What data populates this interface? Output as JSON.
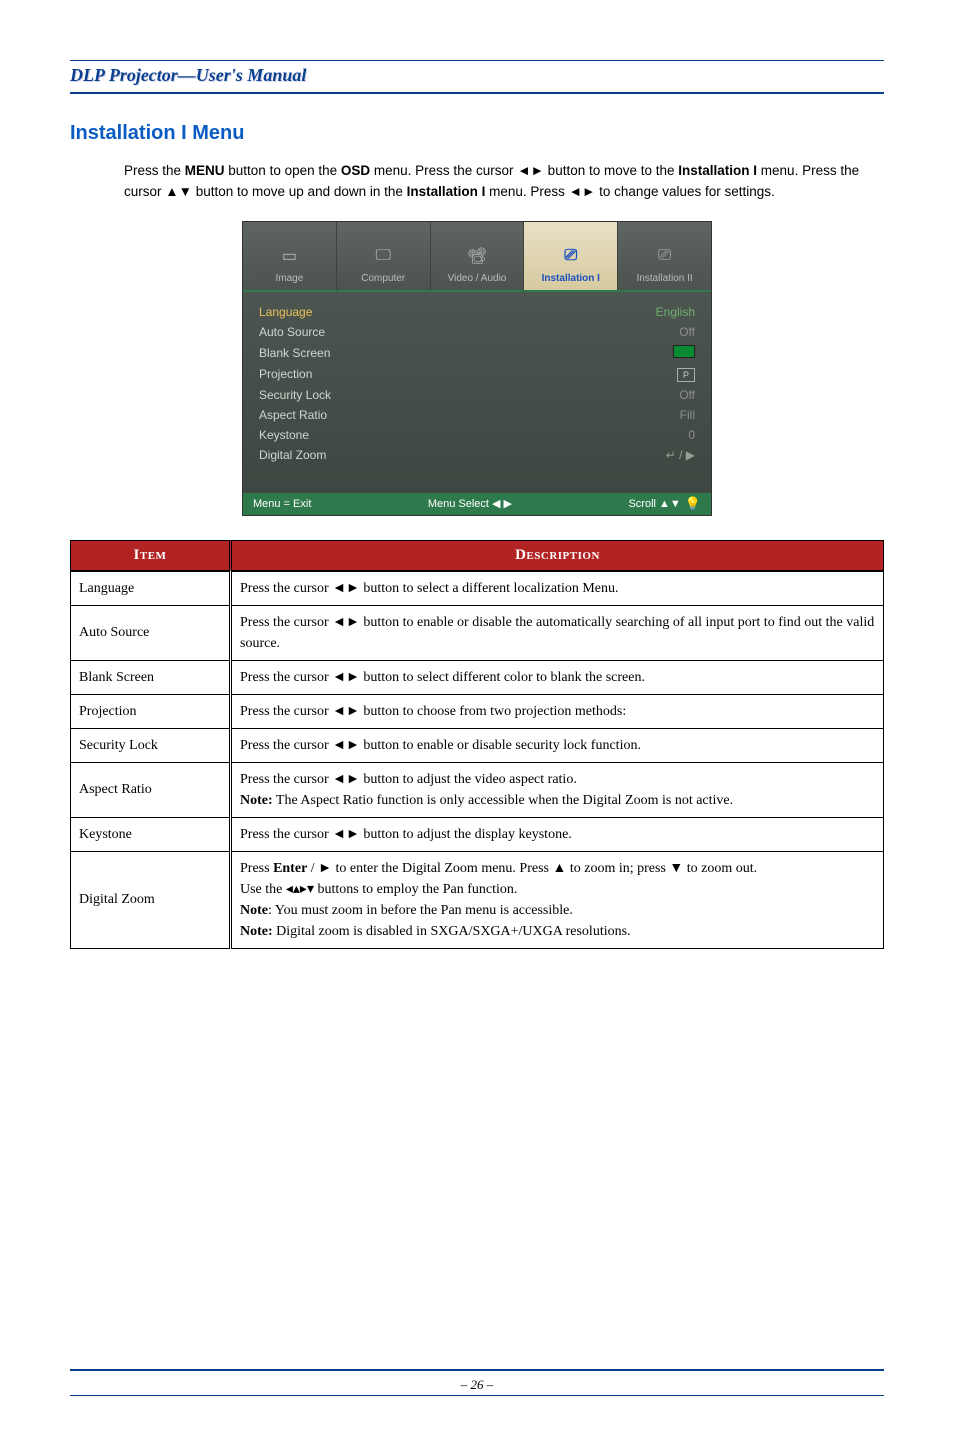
{
  "header": {
    "title": "DLP Projector—User's Manual"
  },
  "section": {
    "heading": "Installation I Menu"
  },
  "intro": {
    "pieces": [
      "Press the ",
      "MENU",
      " button to open the ",
      "OSD",
      " menu. Press the cursor ◄► button to move to the ",
      "Installa­tion I",
      " menu. Press the cursor ▲▼ button to move up and down in the ",
      "Installation I",
      " menu. Press ◄► to change values for settings."
    ]
  },
  "osd": {
    "tabs": [
      "Image",
      "Computer",
      "Video / Audio",
      "Installation I",
      "Installation II"
    ],
    "active_tab_index": 3,
    "rows": [
      {
        "label": "Language",
        "value": "English",
        "value_kind": "text",
        "sel": true
      },
      {
        "label": "Auto Source",
        "value": "Off",
        "value_kind": "off"
      },
      {
        "label": "Blank Screen",
        "value": "",
        "value_kind": "swatch"
      },
      {
        "label": "Projection",
        "value": "P",
        "value_kind": "pbox"
      },
      {
        "label": "Security Lock",
        "value": "Off",
        "value_kind": "off"
      },
      {
        "label": "Aspect Ratio",
        "value": "Fill",
        "value_kind": "text_off"
      },
      {
        "label": "Keystone",
        "value": "0",
        "value_kind": "off"
      },
      {
        "label": "Digital Zoom",
        "value": "↵ / ▶",
        "value_kind": "enter"
      }
    ],
    "footer": {
      "left": "Menu = Exit",
      "mid": "Menu Select ◀ ▶",
      "right": "Scroll ▲▼"
    }
  },
  "table": {
    "head_item": "Item",
    "head_desc": "Description",
    "rows": [
      {
        "item": "Language",
        "desc": "Press the cursor ◄► button to select a different localization Menu."
      },
      {
        "item": "Auto Source",
        "desc": "Press the cursor ◄► button to enable or disable the automatically searching of all input port to find out the valid source."
      },
      {
        "item": "Blank Screen",
        "desc": "Press the cursor ◄► button to select different color to blank the screen."
      },
      {
        "item": "Projection",
        "desc": "Press the cursor ◄► button to choose from two projection methods:"
      },
      {
        "item": "Security Lock",
        "desc": "Press the cursor ◄► button to enable or disable security lock function."
      },
      {
        "item": "Aspect Ratio",
        "desc": "Press the cursor ◄► button to adjust the video aspect ratio.\n<b>Note:</b> The Aspect Ratio function is only accessible when the Digital Zoom is not active."
      },
      {
        "item": "Keystone",
        "desc": "Press the cursor ◄► button to adjust the display keystone."
      },
      {
        "item": "Digital Zoom",
        "desc": "Press <b>Enter</b> / ► to enter the Digital Zoom menu. Press ▲ to zoom in; press ▼ to zoom out.\nUse the ◂▴▸▾ buttons to employ the Pan function.\n<b>Note</b>: You must zoom in before the Pan menu is accessible.\n<b>Note:</b> Digital zoom is disabled in SXGA/SXGA+/UXGA resolutions."
      }
    ]
  },
  "footer": {
    "page": "– 26 –"
  },
  "colors": {
    "brand_blue": "#0a3f8f",
    "heading_blue": "#0a5cc4",
    "table_red": "#b22424",
    "osd_green": "#2e7a4d"
  }
}
